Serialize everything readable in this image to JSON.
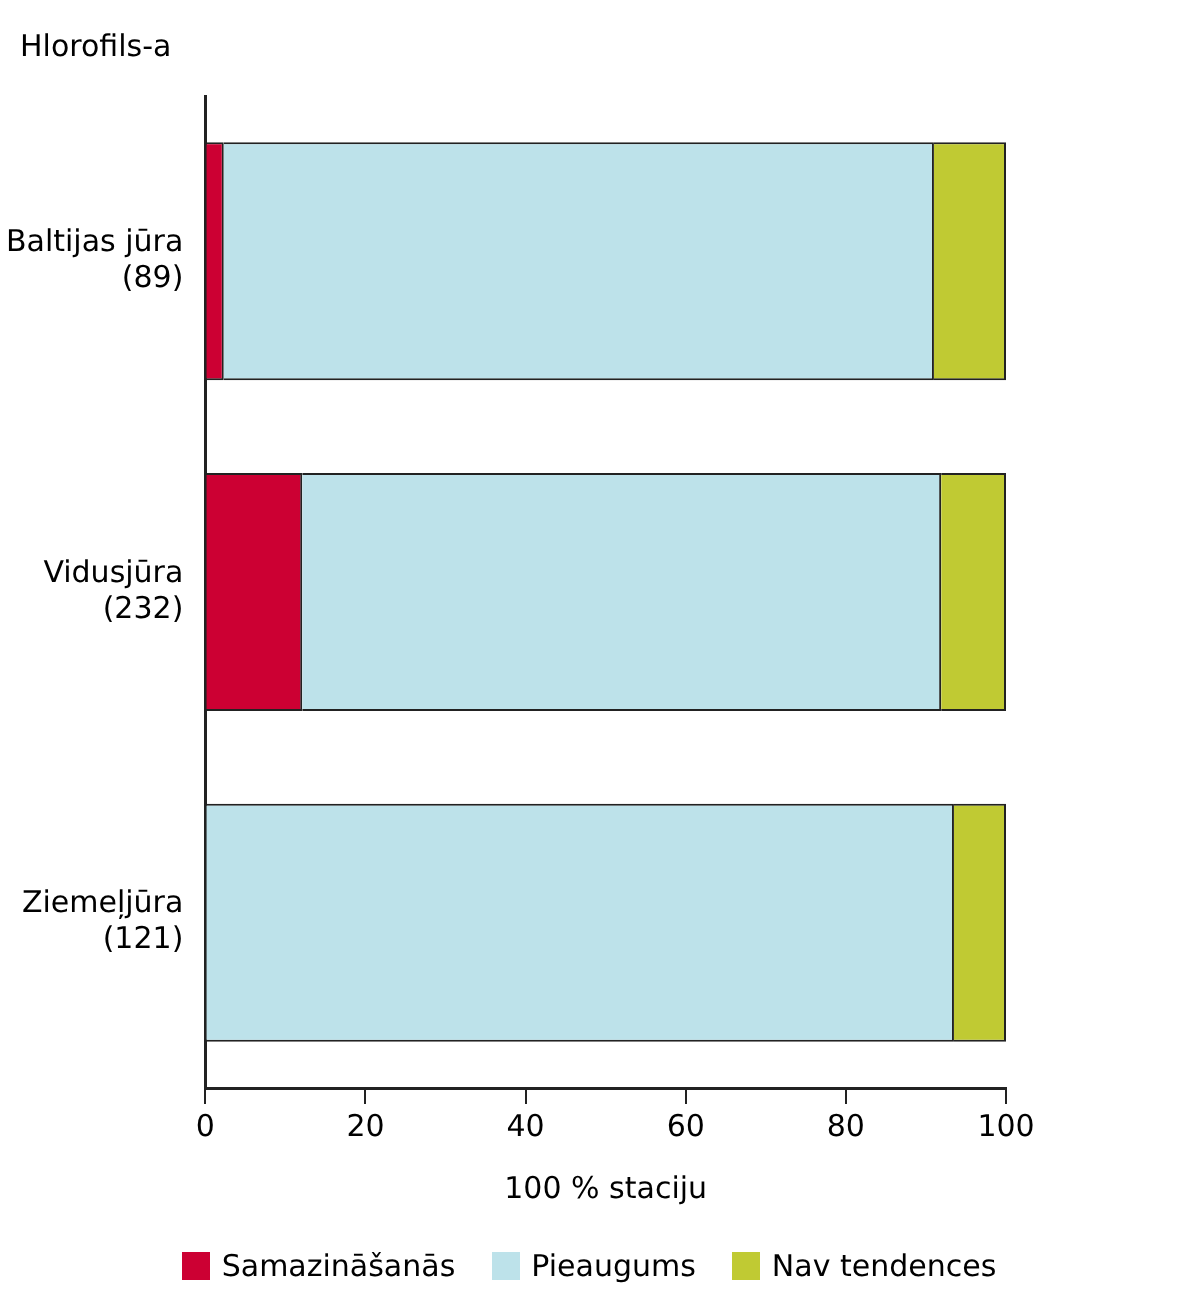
{
  "chart_data": {
    "type": "bar",
    "orientation": "horizontal",
    "stacked": true,
    "title": "Hlorofils-a",
    "xlabel": "100 % staciju",
    "categories": [
      "Baltijas jūra\n(89)",
      "Vidusjūra\n(232)",
      "Ziemeļjūra\n(121)"
    ],
    "series": [
      {
        "name": "Samazināšanās",
        "color": "#cc0033",
        "values": [
          2.3,
          12.1,
          0
        ]
      },
      {
        "name": "Pieaugums",
        "color": "#bde2ea",
        "values": [
          88.7,
          79.8,
          93.5
        ]
      },
      {
        "name": "Nav tendences",
        "color": "#c0ca33",
        "values": [
          9,
          8.1,
          6.5
        ]
      }
    ],
    "xlim": [
      0,
      100
    ],
    "xticks": [
      0,
      20,
      40,
      60,
      80,
      100
    ],
    "grid": false,
    "legend": "bottom"
  }
}
